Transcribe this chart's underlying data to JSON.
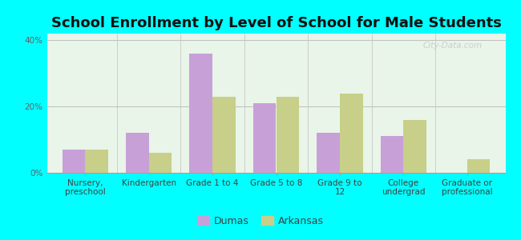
{
  "title": "School Enrollment by Level of School for Male Students",
  "categories": [
    "Nursery,\npreschool",
    "Kindergarten",
    "Grade 1 to 4",
    "Grade 5 to 8",
    "Grade 9 to\n12",
    "College\nundergrad",
    "Graduate or\nprofessional"
  ],
  "dumas_values": [
    7.0,
    12.0,
    36.0,
    21.0,
    12.0,
    11.0,
    0.0
  ],
  "arkansas_values": [
    7.0,
    6.0,
    23.0,
    23.0,
    24.0,
    16.0,
    4.0
  ],
  "dumas_color": "#c8a0d8",
  "arkansas_color": "#c8cf88",
  "background_color": "#00ffff",
  "plot_bg": "#e8f5e8",
  "ylim": [
    0,
    42
  ],
  "yticks": [
    0,
    20,
    40
  ],
  "ytick_labels": [
    "0%",
    "20%",
    "40%"
  ],
  "bar_width": 0.36,
  "legend_dumas": "Dumas",
  "legend_arkansas": "Arkansas",
  "watermark": "City-Data.com",
  "title_fontsize": 13,
  "tick_fontsize": 7.5,
  "legend_fontsize": 9
}
